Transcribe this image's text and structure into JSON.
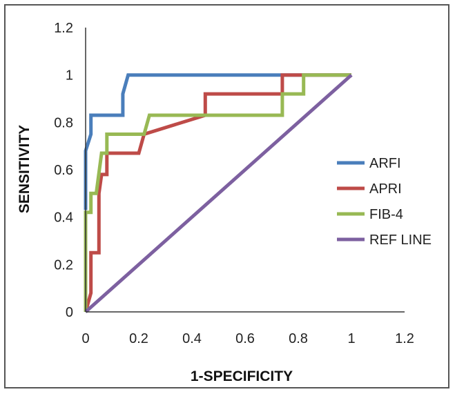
{
  "chart_data": {
    "type": "line",
    "title": "",
    "xlabel": "1-SPECIFICITY",
    "ylabel": "SENSITIVITY",
    "xlim": [
      0,
      1.2
    ],
    "ylim": [
      0,
      1.2
    ],
    "x_ticks": [
      "0",
      "0.2",
      "0.4",
      "0.6",
      "0.8",
      "1",
      "1.2"
    ],
    "y_ticks": [
      "0",
      "0.2",
      "0.4",
      "0.6",
      "0.8",
      "1",
      "1.2"
    ],
    "grid": false,
    "legend_position": "right",
    "series": [
      {
        "name": "ARFI",
        "color": "#4a7ebb",
        "points": [
          [
            0,
            0.43
          ],
          [
            0,
            0.68
          ],
          [
            0.02,
            0.75
          ],
          [
            0.02,
            0.83
          ],
          [
            0.14,
            0.83
          ],
          [
            0.14,
            0.92
          ],
          [
            0.16,
            1
          ],
          [
            0.74,
            1
          ],
          [
            1,
            1
          ]
        ]
      },
      {
        "name": "APRI",
        "color": "#be4b48",
        "points": [
          [
            0,
            0
          ],
          [
            0.02,
            0.08
          ],
          [
            0.02,
            0.25
          ],
          [
            0.05,
            0.25
          ],
          [
            0.05,
            0.5
          ],
          [
            0.06,
            0.58
          ],
          [
            0.08,
            0.58
          ],
          [
            0.08,
            0.67
          ],
          [
            0.2,
            0.67
          ],
          [
            0.22,
            0.75
          ],
          [
            0.22,
            0.75
          ],
          [
            0.45,
            0.83
          ],
          [
            0.45,
            0.92
          ],
          [
            0.74,
            0.92
          ],
          [
            0.74,
            1
          ],
          [
            0.82,
            1
          ],
          [
            1,
            1
          ]
        ]
      },
      {
        "name": "FIB-4",
        "color": "#98b954",
        "points": [
          [
            0,
            0
          ],
          [
            0,
            0.42
          ],
          [
            0.02,
            0.42
          ],
          [
            0.02,
            0.5
          ],
          [
            0.04,
            0.5
          ],
          [
            0.06,
            0.67
          ],
          [
            0.08,
            0.67
          ],
          [
            0.08,
            0.75
          ],
          [
            0.22,
            0.75
          ],
          [
            0.24,
            0.83
          ],
          [
            0.74,
            0.83
          ],
          [
            0.74,
            0.92
          ],
          [
            0.82,
            0.92
          ],
          [
            0.82,
            1
          ],
          [
            1,
            1
          ]
        ]
      },
      {
        "name": "REF LINE",
        "color": "#7d60a0",
        "points": [
          [
            0,
            0
          ],
          [
            1,
            1
          ]
        ]
      }
    ]
  }
}
